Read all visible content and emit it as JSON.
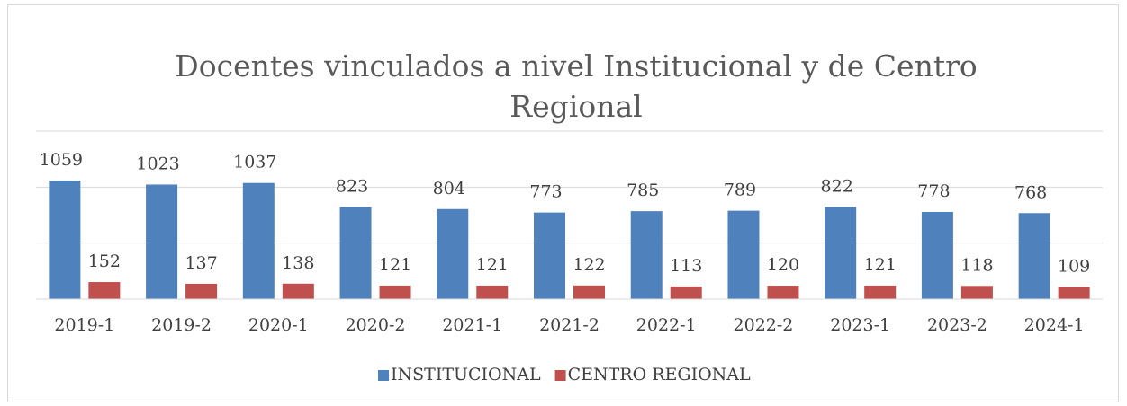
{
  "chart_data": {
    "type": "bar",
    "title": [
      "Docentes vinculados a nivel Institucional y  de Centro",
      "Regional"
    ],
    "categories": [
      "2019-1",
      "2019-2",
      "2020-1",
      "2020-2",
      "2021-1",
      "2021-2",
      "2022-1",
      "2022-2",
      "2023-1",
      "2023-2",
      "2024-1"
    ],
    "series": [
      {
        "name": "INSTITUCIONAL",
        "color": "#4f81bd",
        "values": [
          1059,
          1023,
          1037,
          823,
          804,
          773,
          785,
          789,
          822,
          778,
          768
        ]
      },
      {
        "name": "CENTRO REGIONAL",
        "color": "#c0504d",
        "values": [
          152,
          137,
          138,
          121,
          121,
          122,
          113,
          120,
          121,
          118,
          109
        ]
      }
    ],
    "ylim": [
      0,
      1500
    ],
    "yticks": [
      0,
      500,
      1000,
      1500
    ],
    "grid": true,
    "legend": "bottom"
  }
}
